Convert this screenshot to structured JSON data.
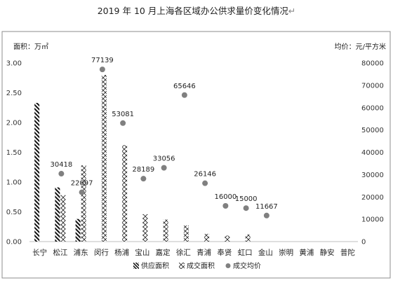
{
  "chart_data": {
    "type": "bar",
    "title": "2019 年 10 月上海各区域办公供求量价变化情况",
    "title_suffix": "↵",
    "y_left_label": "面积：万㎡",
    "y_right_label": "均价：元/平方米",
    "y_left_ticks": [
      "0.00",
      "0.50",
      "1.00",
      "1.50",
      "2.00",
      "2.50",
      "3.00"
    ],
    "y_right_ticks": [
      "0",
      "10000",
      "20000",
      "30000",
      "40000",
      "50000",
      "60000",
      "70000",
      "80000"
    ],
    "y_left_range": [
      0,
      3.0
    ],
    "y_right_range": [
      0,
      80000
    ],
    "categories": [
      "长宁",
      "松江",
      "浦东",
      "闵行",
      "杨浦",
      "宝山",
      "嘉定",
      "徐汇",
      "青浦",
      "奉贤",
      "虹口",
      "金山",
      "崇明",
      "黄浦",
      "静安",
      "普陀"
    ],
    "legend_position": "bottom",
    "series": [
      {
        "name": "供应面积",
        "axis": "left",
        "kind": "bar",
        "pattern": "diag",
        "values": [
          2.33,
          0.91,
          0.38,
          0,
          0,
          0,
          0,
          0,
          0,
          0,
          0,
          0,
          0,
          0,
          0,
          0
        ]
      },
      {
        "name": "成交面积",
        "axis": "left",
        "kind": "bar",
        "pattern": "cross",
        "values": [
          0,
          0.78,
          1.28,
          2.8,
          1.62,
          0.46,
          0.37,
          0.27,
          0.13,
          0.1,
          0.12,
          0,
          0,
          0,
          0,
          0
        ]
      },
      {
        "name": "成交均价",
        "axis": "right",
        "kind": "point",
        "values": [
          null,
          30418,
          22097,
          77139,
          53081,
          28189,
          33056,
          65646,
          26146,
          16000,
          15000,
          11667,
          null,
          null,
          null,
          null
        ],
        "labels": [
          "",
          "30418",
          "22097",
          "77139",
          "53081",
          "28189",
          "33056",
          "65646",
          "26146",
          "16000",
          "15000",
          "11667",
          "",
          "",
          "",
          ""
        ]
      }
    ]
  },
  "colors": {
    "bars": "#111111",
    "points": "#808080",
    "border": "#8c8c8c",
    "axis": "#bfbfbf"
  }
}
